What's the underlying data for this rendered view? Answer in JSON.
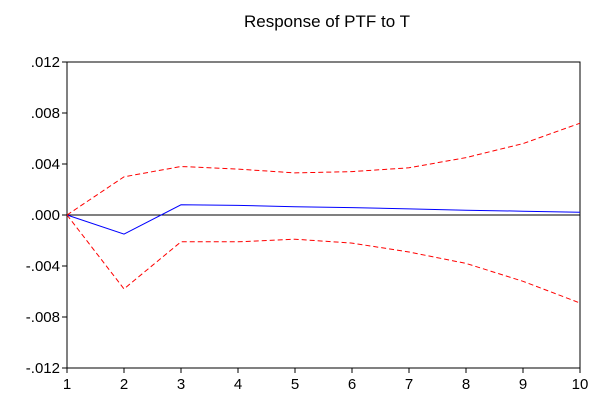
{
  "chart_data": {
    "type": "line",
    "title": "Response of PTF to T",
    "xlabel": "",
    "ylabel": "",
    "x": [
      1,
      2,
      3,
      4,
      5,
      6,
      7,
      8,
      9,
      10
    ],
    "x_ticks": [
      "1",
      "2",
      "3",
      "4",
      "5",
      "6",
      "7",
      "8",
      "9",
      "10"
    ],
    "y_ticks": [
      {
        "value": 0.012,
        "label": ".012"
      },
      {
        "value": 0.008,
        "label": ".008"
      },
      {
        "value": 0.004,
        "label": ".004"
      },
      {
        "value": 0.0,
        "label": ".000"
      },
      {
        "value": -0.004,
        "label": "-.004"
      },
      {
        "value": -0.008,
        "label": "-.008"
      },
      {
        "value": -0.012,
        "label": "-.012"
      }
    ],
    "xlim": [
      1,
      10
    ],
    "ylim": [
      -0.012,
      0.012
    ],
    "grid": false,
    "zero_line": true,
    "series": [
      {
        "role": "response",
        "style": "solid",
        "color": "#0000ff",
        "values": [
          0.0,
          -0.0015,
          0.0008,
          0.00075,
          0.00065,
          0.00058,
          0.00048,
          0.00038,
          0.0003,
          0.00022
        ]
      },
      {
        "role": "upper-band",
        "style": "dashed",
        "color": "#ff0000",
        "values": [
          0.0,
          0.003,
          0.0038,
          0.0036,
          0.0033,
          0.0034,
          0.0037,
          0.0045,
          0.0056,
          0.0072
        ]
      },
      {
        "role": "lower-band",
        "style": "dashed",
        "color": "#ff0000",
        "values": [
          0.0,
          -0.0058,
          -0.0021,
          -0.0021,
          -0.0019,
          -0.0022,
          -0.0029,
          -0.0038,
          -0.0052,
          -0.0069
        ]
      }
    ]
  }
}
